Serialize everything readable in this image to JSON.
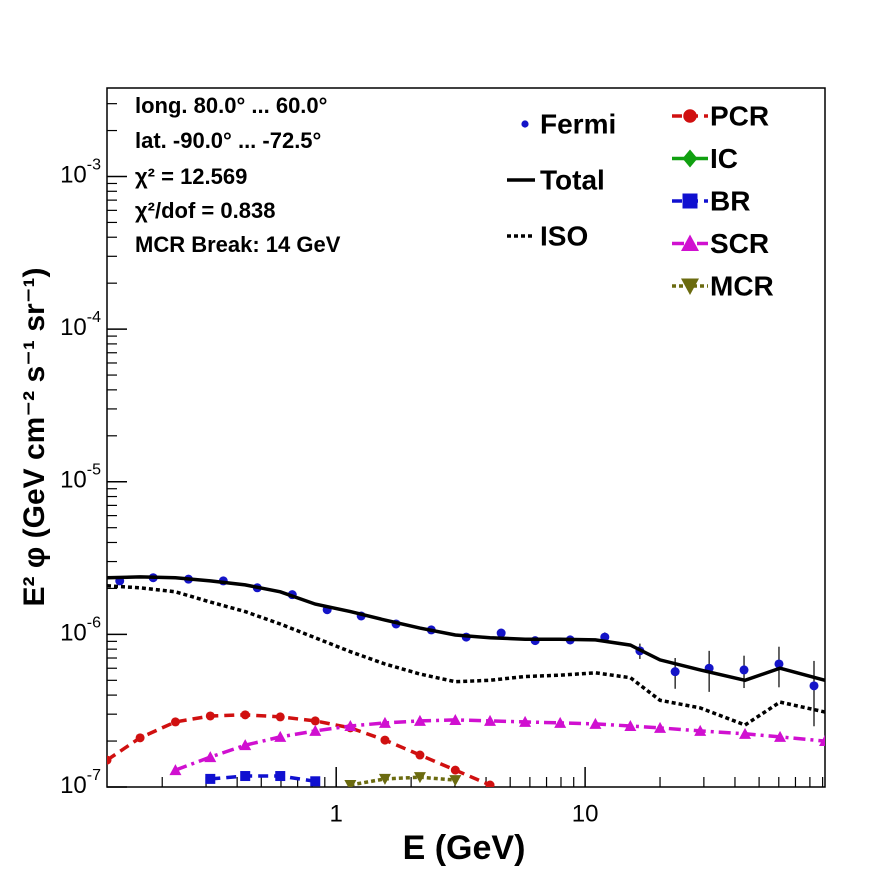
{
  "chart_data": {
    "type": "line",
    "xlabel": "E (GeV)",
    "ylabel": "E² φ (GeV cm⁻² s⁻¹ sr⁻¹)",
    "annotations": [
      "long. 80.0° ... 60.0°",
      "lat. -90.0° ... -72.5°",
      "χ² = 12.569",
      "χ²/dof = 0.838",
      "MCR Break: 14 GeV"
    ],
    "xscale": "log",
    "yscale": "log",
    "xlim": [
      0.12,
      92
    ],
    "ylim": [
      1e-07,
      0.0038
    ],
    "xticks": [
      1,
      10
    ],
    "xminorticks": [
      0.2,
      0.3,
      0.4,
      0.5,
      0.6,
      0.7,
      0.8,
      0.9,
      2,
      3,
      4,
      5,
      6,
      7,
      8,
      9,
      20,
      30,
      40,
      50,
      60,
      70,
      80,
      90
    ],
    "yticks": [
      {
        "value": 1e-07,
        "label": "10",
        "exponent": "-7"
      },
      {
        "value": 1e-06,
        "label": "10",
        "exponent": "-6"
      },
      {
        "value": 1e-05,
        "label": "10",
        "exponent": "-5"
      },
      {
        "value": 0.0001,
        "label": "10",
        "exponent": "-4"
      },
      {
        "value": 0.001,
        "label": "10",
        "exponent": "-3"
      }
    ],
    "yminorticks": [
      2e-07,
      3e-07,
      4e-07,
      5e-07,
      6e-07,
      7e-07,
      8e-07,
      9e-07,
      2e-06,
      3e-06,
      4e-06,
      5e-06,
      6e-06,
      7e-06,
      8e-06,
      9e-06,
      2e-05,
      3e-05,
      4e-05,
      5e-05,
      6e-05,
      7e-05,
      8e-05,
      9e-05,
      0.0002,
      0.0003,
      0.0004,
      0.0005,
      0.0006,
      0.0007,
      0.0008,
      0.0009,
      0.002,
      0.003
    ],
    "x": [
      0.12,
      0.163,
      0.226,
      0.312,
      0.431,
      0.596,
      0.824,
      1.14,
      1.57,
      2.17,
      3.01,
      4.15,
      5.74,
      7.94,
      11.0,
      15.2,
      20.0,
      29.0,
      43.9,
      60.7,
      92.0
    ],
    "series": [
      {
        "name": "Fermi",
        "color": "#1414c8",
        "marker": "circle",
        "line": "none",
        "x": [
          0.135,
          0.184,
          0.255,
          0.352,
          0.482,
          0.666,
          0.92,
          1.26,
          1.74,
          2.41,
          3.33,
          4.6,
          6.3,
          8.71,
          12.0,
          16.6,
          23.0,
          31.5,
          43.5,
          60.1,
          83.1
        ],
        "values": [
          2.24e-06,
          2.35e-06,
          2.3e-06,
          2.24e-06,
          2.02e-06,
          1.82e-06,
          1.45e-06,
          1.32e-06,
          1.17e-06,
          1.07e-06,
          9.6e-07,
          1.02e-06,
          9.1e-07,
          9.2e-07,
          9.6e-07,
          7.8e-07,
          5.7e-07,
          6e-07,
          5.85e-07,
          6.4e-07,
          4.6e-07
        ],
        "errors": [
          4e-08,
          4e-08,
          4e-08,
          4e-08,
          3e-08,
          3e-08,
          3e-08,
          3e-08,
          2e-08,
          2e-08,
          2e-08,
          5e-08,
          5e-08,
          6e-08,
          7e-08,
          9e-08,
          1.3e-07,
          1.8e-07,
          1.4e-07,
          1.9e-07,
          2.1e-07
        ]
      },
      {
        "name": "Total",
        "color": "#000000",
        "marker": "none",
        "line": "solid",
        "values": [
          2.35e-06,
          2.38e-06,
          2.35e-06,
          2.24e-06,
          2.11e-06,
          1.9e-06,
          1.58e-06,
          1.41e-06,
          1.24e-06,
          1.1e-06,
          9.9e-07,
          9.5e-07,
          9.3e-07,
          9.3e-07,
          9.2e-07,
          8.5e-07,
          6.8e-07,
          5.85e-07,
          5e-07,
          6e-07,
          5e-07
        ]
      },
      {
        "name": "ISO",
        "color": "#000000",
        "marker": "none",
        "line": "dotted",
        "values": [
          2.08e-06,
          2.02e-06,
          1.9e-06,
          1.63e-06,
          1.41e-06,
          1.17e-06,
          9.5e-07,
          7.7e-07,
          6.4e-07,
          5.5e-07,
          4.9e-07,
          5e-07,
          5.3e-07,
          5.4e-07,
          5.6e-07,
          5.2e-07,
          3.7e-07,
          3.3e-07,
          2.55e-07,
          3.6e-07,
          3.1e-07
        ]
      },
      {
        "name": "PCR",
        "color": "#d01010",
        "marker": "circle",
        "line": "dashed",
        "values": [
          1.5e-07,
          2.1e-07,
          2.67e-07,
          2.92e-07,
          2.97e-07,
          2.88e-07,
          2.71e-07,
          2.44e-07,
          2.03e-07,
          1.62e-07,
          1.29e-07,
          1.03e-07,
          null,
          null,
          null,
          null,
          null,
          null,
          null,
          null,
          null
        ]
      },
      {
        "name": "IC",
        "color": "#10a010",
        "marker": "diamond",
        "line": "solid",
        "values": [
          null,
          null,
          null,
          null,
          null,
          null,
          null,
          null,
          null,
          null,
          null,
          null,
          null,
          null,
          null,
          null,
          null,
          null,
          null,
          null,
          null
        ]
      },
      {
        "name": "BR",
        "color": "#1010d0",
        "marker": "square",
        "line": "dashed",
        "values": [
          null,
          null,
          null,
          1.13e-07,
          1.18e-07,
          1.18e-07,
          1.09e-07,
          null,
          null,
          null,
          null,
          null,
          null,
          null,
          null,
          null,
          null,
          null,
          null,
          null,
          null
        ]
      },
      {
        "name": "SCR",
        "color": "#d010d0",
        "marker": "triangle",
        "line": "dashdot",
        "values": [
          null,
          null,
          1.29e-07,
          1.57e-07,
          1.88e-07,
          2.13e-07,
          2.33e-07,
          2.51e-07,
          2.63e-07,
          2.71e-07,
          2.75e-07,
          2.71e-07,
          2.67e-07,
          2.63e-07,
          2.59e-07,
          2.51e-07,
          2.44e-07,
          2.33e-07,
          2.23e-07,
          2.13e-07,
          2e-07
        ]
      },
      {
        "name": "MCR",
        "color": "#6b6b10",
        "marker": "triangle-down",
        "line": "dotted",
        "values": [
          null,
          null,
          null,
          null,
          null,
          null,
          null,
          1.03e-07,
          1.13e-07,
          1.16e-07,
          1.11e-07,
          null,
          null,
          null,
          null,
          null,
          null,
          null,
          null,
          null,
          null
        ]
      }
    ]
  }
}
